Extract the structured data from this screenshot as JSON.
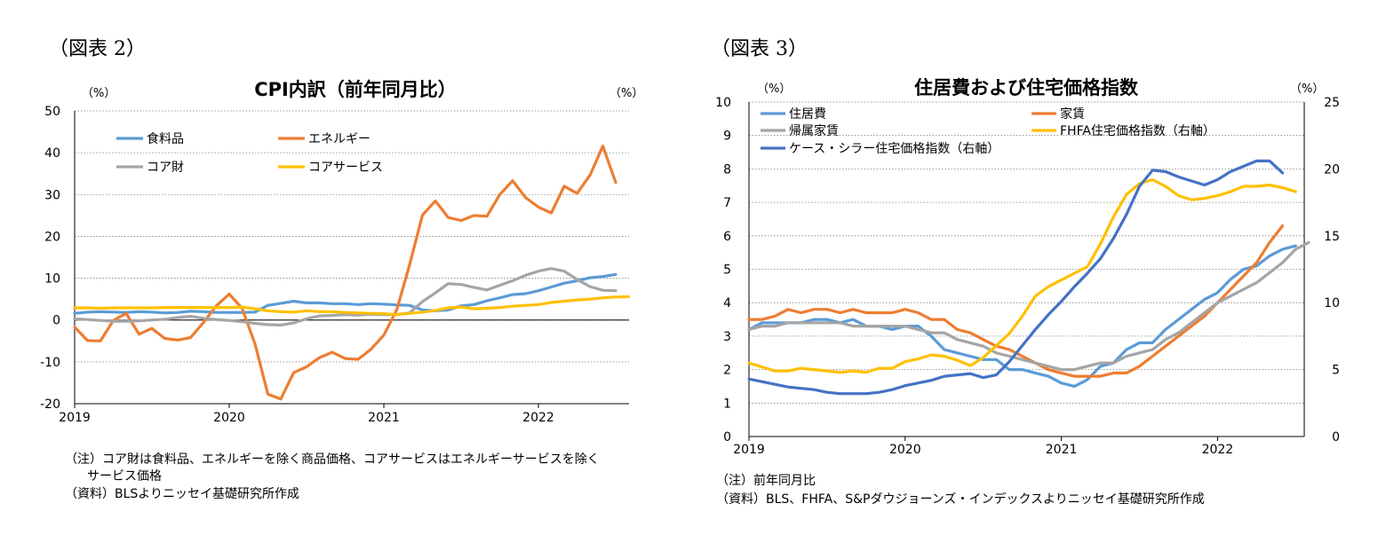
{
  "panels": [
    {
      "label": "（図表 2）",
      "notes": [
        "（注）コア財は食料品、エネルギーを除く商品価格、コアサービスはエネルギーサービスを除く",
        "サービス価格",
        "（資料）BLSよりニッセイ基礎研究所作成"
      ]
    },
    {
      "label": "（図表 3）",
      "notes": [
        "（注）前年同月比",
        "（資料）BLS、FHFA、S&Pダウジョーンズ・インデックスよりニッセイ基礎研究所作成"
      ]
    }
  ],
  "chart_data": [
    {
      "type": "line",
      "title": "CPI内訳（前年同月比）",
      "y_unit_left": "（%）",
      "y_unit_right": "（%）",
      "ylim": [
        -20,
        50
      ],
      "yticks": [
        50,
        40,
        30,
        20,
        10,
        0,
        -10,
        -20
      ],
      "x_start": "2019-01",
      "xtick_labels": [
        "2019",
        "2020",
        "2021",
        "2022"
      ],
      "series": [
        {
          "name": "食料品",
          "color": "#5b9bd5",
          "values": [
            1.6,
            1.9,
            2.0,
            1.9,
            1.8,
            2.0,
            1.9,
            1.7,
            1.8,
            2.1,
            2.0,
            1.8,
            1.8,
            1.8,
            1.9,
            3.5,
            4.0,
            4.5,
            4.1,
            4.1,
            3.9,
            3.9,
            3.7,
            3.9,
            3.8,
            3.6,
            3.5,
            2.4,
            2.2,
            2.4,
            3.4,
            3.7,
            4.6,
            5.3,
            6.1,
            6.3,
            7.0,
            7.9,
            8.8,
            9.4,
            10.1,
            10.4,
            10.9
          ]
        },
        {
          "name": "エネルギー",
          "color": "#ed7d31",
          "values": [
            -1.7,
            -4.9,
            -5.0,
            -0.1,
            1.6,
            -3.4,
            -2.0,
            -4.4,
            -4.8,
            -4.2,
            -0.6,
            3.4,
            6.2,
            2.8,
            -5.7,
            -17.7,
            -18.9,
            -12.6,
            -11.2,
            -9.0,
            -7.7,
            -9.2,
            -9.4,
            -7.0,
            -3.6,
            2.4,
            13.2,
            25.1,
            28.5,
            24.5,
            23.8,
            25.0,
            24.8,
            30.0,
            33.3,
            29.3,
            27.0,
            25.6,
            32.0,
            30.3,
            34.6,
            41.6,
            32.9
          ]
        },
        {
          "name": "コア財",
          "color": "#a5a5a5",
          "values": [
            0.3,
            0.1,
            -0.1,
            -0.3,
            -0.3,
            -0.2,
            0.0,
            0.2,
            0.6,
            0.9,
            0.4,
            0.1,
            -0.1,
            -0.4,
            -0.8,
            -1.1,
            -1.2,
            -0.7,
            0.3,
            1.0,
            1.1,
            1.3,
            1.2,
            1.4,
            1.3,
            1.3,
            1.7,
            4.4,
            6.5,
            8.7,
            8.5,
            7.8,
            7.2,
            8.3,
            9.4,
            10.7,
            11.7,
            12.3,
            11.7,
            9.7,
            8.0,
            7.1,
            7.0
          ]
        },
        {
          "name": "コアサービス",
          "color": "#ffc000",
          "values": [
            2.9,
            2.9,
            2.8,
            2.9,
            2.9,
            2.9,
            2.9,
            3.0,
            3.0,
            3.0,
            3.0,
            3.0,
            3.0,
            3.1,
            2.7,
            2.2,
            2.0,
            1.9,
            2.2,
            2.0,
            2.0,
            1.8,
            1.7,
            1.6,
            1.5,
            1.3,
            1.6,
            1.9,
            2.3,
            2.9,
            3.1,
            2.7,
            2.8,
            3.0,
            3.3,
            3.5,
            3.7,
            4.2,
            4.5,
            4.8,
            5.0,
            5.3,
            5.5,
            5.6
          ]
        }
      ]
    },
    {
      "type": "line",
      "title": "住居費および住宅価格指数",
      "y_unit_left": "（%）",
      "y_unit_right": "（%）",
      "ylim": [
        0,
        10
      ],
      "ylim_right": [
        0,
        25
      ],
      "yticks": [
        10,
        9,
        8,
        7,
        6,
        5,
        4,
        3,
        2,
        1,
        0
      ],
      "yticks_right": [
        25,
        20,
        15,
        10,
        5,
        0
      ],
      "x_start": "2019-01",
      "xtick_labels": [
        "2019",
        "2020",
        "2021",
        "2022"
      ],
      "series": [
        {
          "name": "住居費",
          "color": "#5b9bd5",
          "axis": "left",
          "values": [
            3.2,
            3.4,
            3.4,
            3.4,
            3.4,
            3.5,
            3.5,
            3.4,
            3.5,
            3.3,
            3.3,
            3.2,
            3.3,
            3.3,
            3.0,
            2.6,
            2.5,
            2.4,
            2.3,
            2.3,
            2.0,
            2.0,
            1.9,
            1.8,
            1.6,
            1.5,
            1.7,
            2.1,
            2.2,
            2.6,
            2.8,
            2.8,
            3.2,
            3.5,
            3.8,
            4.1,
            4.3,
            4.7,
            5.0,
            5.1,
            5.4,
            5.6,
            5.7
          ]
        },
        {
          "name": "家賃",
          "color": "#ed7d31",
          "axis": "left",
          "values": [
            3.5,
            3.5,
            3.6,
            3.8,
            3.7,
            3.8,
            3.8,
            3.7,
            3.8,
            3.7,
            3.7,
            3.7,
            3.8,
            3.7,
            3.5,
            3.5,
            3.2,
            3.1,
            2.9,
            2.7,
            2.6,
            2.4,
            2.2,
            2.0,
            1.9,
            1.8,
            1.8,
            1.8,
            1.9,
            1.9,
            2.1,
            2.4,
            2.7,
            3.0,
            3.3,
            3.6,
            4.0,
            4.4,
            4.8,
            5.2,
            5.8,
            6.3
          ]
        },
        {
          "name": "帰属家賃",
          "color": "#a5a5a5",
          "axis": "left",
          "values": [
            3.2,
            3.3,
            3.3,
            3.4,
            3.4,
            3.4,
            3.4,
            3.4,
            3.3,
            3.3,
            3.3,
            3.3,
            3.3,
            3.2,
            3.1,
            3.1,
            2.9,
            2.8,
            2.7,
            2.5,
            2.4,
            2.3,
            2.2,
            2.1,
            2.0,
            2.0,
            2.1,
            2.2,
            2.2,
            2.4,
            2.5,
            2.6,
            2.9,
            3.1,
            3.4,
            3.7,
            4.0,
            4.2,
            4.4,
            4.6,
            4.9,
            5.2,
            5.6,
            5.8
          ]
        },
        {
          "name": "FHFA住宅価格指数（右軸）",
          "color": "#ffc000",
          "axis": "right",
          "values": [
            5.5,
            5.2,
            4.9,
            4.9,
            5.1,
            5.0,
            4.9,
            4.8,
            4.9,
            4.8,
            5.1,
            5.1,
            5.6,
            5.8,
            6.1,
            6.0,
            5.7,
            5.3,
            5.9,
            6.8,
            7.7,
            9.0,
            10.5,
            11.2,
            11.7,
            12.2,
            12.7,
            14.4,
            16.4,
            18.1,
            18.9,
            19.2,
            18.7,
            18.0,
            17.7,
            17.8,
            18.0,
            18.3,
            18.7,
            18.7,
            18.8,
            18.6,
            18.3
          ]
        },
        {
          "name": "ケース・シラー住宅価格指数（右軸）",
          "color": "#4472c4",
          "axis": "right",
          "values": [
            4.3,
            4.1,
            3.9,
            3.7,
            3.6,
            3.5,
            3.3,
            3.2,
            3.2,
            3.2,
            3.3,
            3.5,
            3.8,
            4.0,
            4.2,
            4.5,
            4.6,
            4.7,
            4.4,
            4.6,
            5.6,
            6.8,
            8.0,
            9.1,
            10.1,
            11.2,
            12.2,
            13.3,
            14.8,
            16.6,
            18.7,
            19.9,
            19.8,
            19.4,
            19.1,
            18.8,
            19.2,
            19.8,
            20.2,
            20.6,
            20.6,
            19.7
          ]
        }
      ]
    }
  ]
}
